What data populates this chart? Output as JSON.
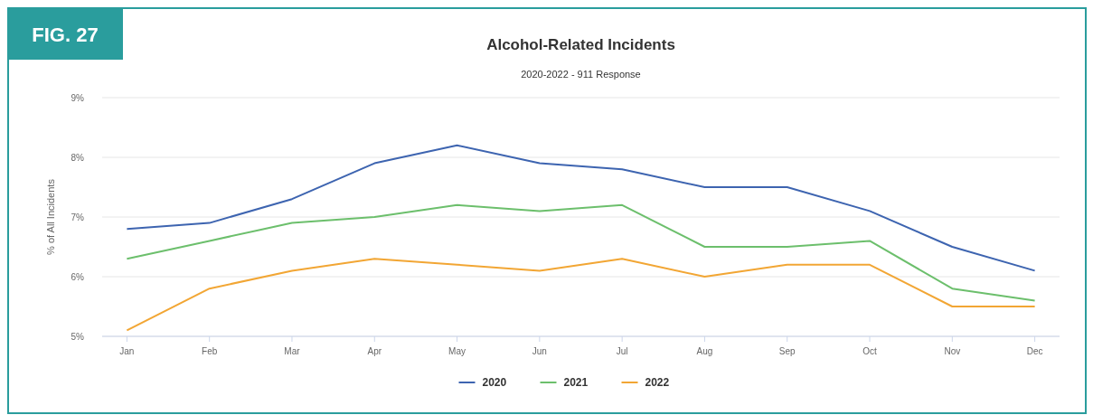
{
  "chart_data": {
    "type": "line",
    "title": "Alcohol-Related Incidents",
    "subtitle": "2020-2022 - 911 Response",
    "ylabel": "% of All Incidents",
    "annotations": [
      "FIG. 27"
    ],
    "categories": [
      "Jan",
      "Feb",
      "Mar",
      "Apr",
      "May",
      "Jun",
      "Jul",
      "Aug",
      "Sep",
      "Oct",
      "Nov",
      "Dec"
    ],
    "series": [
      {
        "name": "2020",
        "color": "#3d64b0",
        "values": [
          6.8,
          6.9,
          7.3,
          7.9,
          8.2,
          7.9,
          7.8,
          7.5,
          7.5,
          7.1,
          6.5,
          6.1
        ]
      },
      {
        "name": "2021",
        "color": "#6cbf6c",
        "values": [
          6.3,
          6.6,
          6.9,
          7.0,
          7.2,
          7.1,
          7.2,
          6.5,
          6.5,
          6.6,
          5.8,
          5.6
        ]
      },
      {
        "name": "2022",
        "color": "#f2a634",
        "values": [
          5.1,
          5.8,
          6.1,
          6.3,
          6.2,
          6.1,
          6.3,
          6.0,
          6.2,
          6.2,
          5.5,
          5.5
        ]
      }
    ],
    "ylim": [
      5,
      9
    ],
    "yticks": [
      {
        "value": 5,
        "label": "5%"
      },
      {
        "value": 6,
        "label": "6%"
      },
      {
        "value": 7,
        "label": "7%"
      },
      {
        "value": 8,
        "label": "8%"
      },
      {
        "value": 9,
        "label": "9%"
      }
    ],
    "grid": "y",
    "legend": "bottom",
    "marker": "none",
    "line_style": "solid"
  }
}
